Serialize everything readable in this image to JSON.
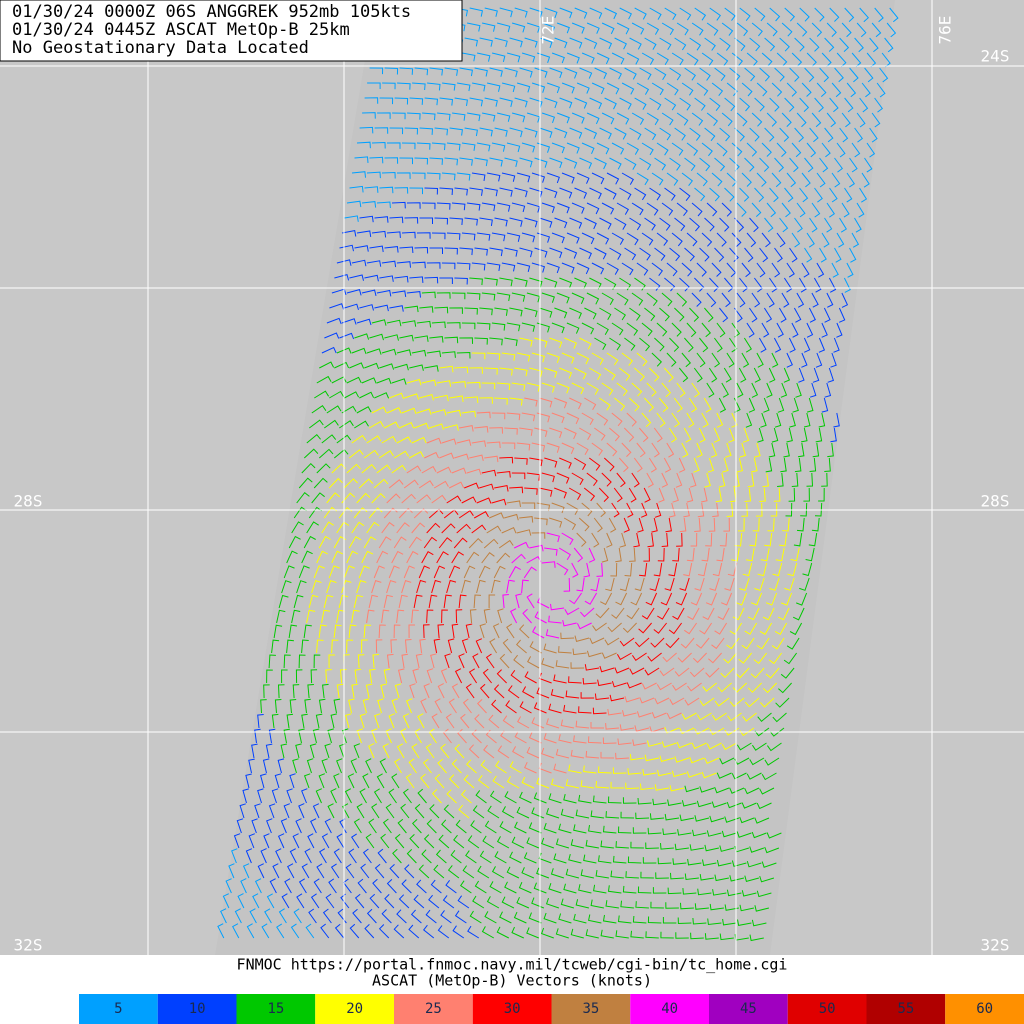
{
  "header": {
    "lines": [
      "01/30/24 0000Z  06S ANGGREK 952mb 105kts",
      "01/30/24 0445Z  ASCAT MetOp-B 25km",
      "No Geostationary Data Located"
    ]
  },
  "map": {
    "lat_labels_right": [
      "24S",
      "28S",
      "32S"
    ],
    "lat_labels_left": [
      "28S",
      "32S"
    ],
    "lon_labels": [
      "72E",
      "76E"
    ]
  },
  "footer": {
    "lines": [
      "FNMOC https://portal.fnmoc.navy.mil/tcweb/cgi-bin/tc_home.cgi",
      "ASCAT (MetOp-B) Vectors (knots)"
    ]
  },
  "legend": {
    "values": [
      5,
      10,
      15,
      20,
      25,
      30,
      35,
      40,
      45,
      50,
      55,
      60
    ],
    "colors": [
      "#00a0ff",
      "#0040ff",
      "#00c800",
      "#ffff00",
      "#ff8070",
      "#ff0000",
      "#c08040",
      "#ff00ff",
      "#a000c0",
      "#e00000",
      "#b00000",
      "#ff9000"
    ]
  }
}
